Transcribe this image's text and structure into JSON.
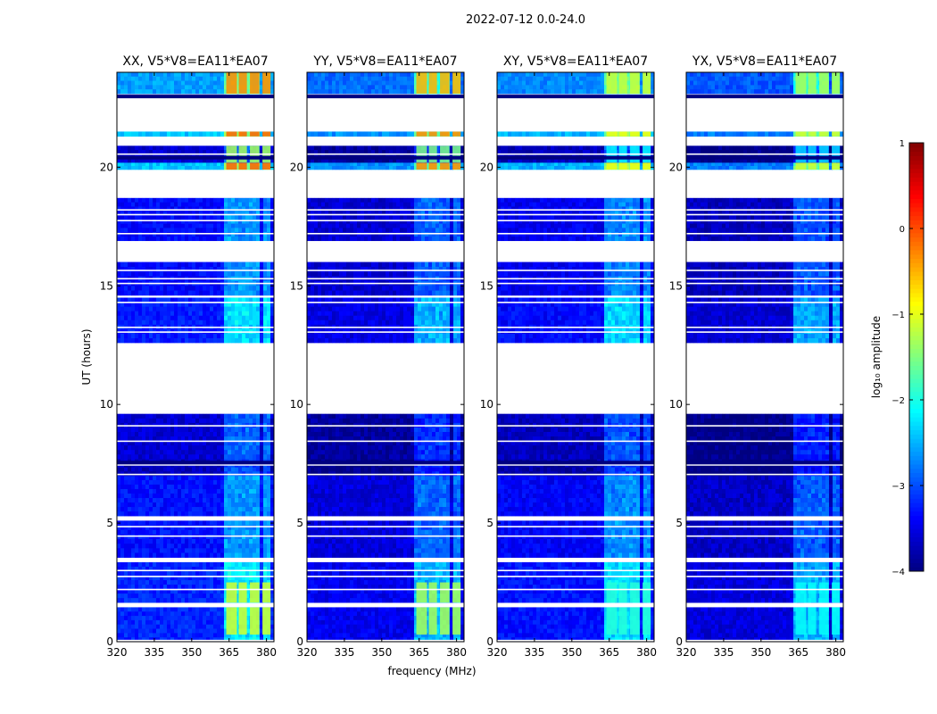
{
  "figure": {
    "suptitle": "2022-07-12 0.0-24.0",
    "xlabel": "frequency (MHz)",
    "ylabel": "UT (hours)"
  },
  "chart_data": {
    "type": "heatmap",
    "description_units": {
      "x": "MHz",
      "y": "UT hours",
      "z": "log10 amplitude"
    },
    "xlim": [
      320,
      383
    ],
    "ylim": [
      0,
      24
    ],
    "xticks": [
      320,
      335,
      350,
      365,
      380
    ],
    "xtick_labels": [
      "320",
      "335",
      "350",
      "365",
      "380"
    ],
    "yticks": [
      0,
      5,
      10,
      15,
      20
    ],
    "ytick_labels": [
      "0",
      "5",
      "10",
      "15",
      "20"
    ],
    "panels": [
      {
        "title": "XX, V5*V8=EA11*EA07",
        "pol": "XX",
        "level": 0.0,
        "edge_level": 1.1,
        "cross": false
      },
      {
        "title": "YY, V5*V8=EA11*EA07",
        "pol": "YY",
        "level": -0.25,
        "edge_level": 0.9,
        "cross": false
      },
      {
        "title": "XY, V5*V8=EA11*EA07",
        "pol": "XY",
        "level": -0.05,
        "edge_level": 0.25,
        "cross": true
      },
      {
        "title": "YX, V5*V8=EA11*EA07",
        "pol": "YX",
        "level": -0.3,
        "edge_level": 0.1,
        "cross": true
      }
    ],
    "rfi_channels_mhz": [
      [
        363.5,
        368.5
      ],
      [
        368.5,
        372.5
      ],
      [
        373.0,
        377.5
      ],
      [
        378.0,
        382.0
      ]
    ],
    "data_blocks_hours": [
      [
        0.0,
        1.45,
        -3.2
      ],
      [
        1.65,
        3.35,
        -3.2
      ],
      [
        3.55,
        5.1,
        -3.3
      ],
      [
        5.3,
        7.0,
        -3.3
      ],
      [
        7.0,
        7.7,
        -3.7
      ],
      [
        7.7,
        9.6,
        -3.6
      ],
      [
        12.6,
        14.5,
        -3.25
      ],
      [
        14.6,
        16.0,
        -3.35
      ],
      [
        16.9,
        18.7,
        -3.35
      ],
      [
        19.9,
        20.2,
        -2.4
      ],
      [
        20.2,
        20.9,
        -3.6
      ],
      [
        21.3,
        21.5,
        -2.4
      ],
      [
        22.95,
        23.1,
        -4.0
      ],
      [
        23.1,
        24.0,
        -2.6
      ]
    ],
    "flag_lines_hours": [
      0.05,
      2.2,
      2.75,
      3.0,
      4.45,
      4.85,
      7.05,
      7.45,
      8.45,
      9.1,
      13.05,
      13.25,
      14.3,
      15.1,
      15.3,
      15.65,
      17.2,
      17.75,
      18.0,
      18.2,
      20.55,
      23.05
    ],
    "colorbar": {
      "label": "log₁₀ amplitude",
      "range": [
        -4,
        1
      ],
      "ticks": [
        1,
        0,
        -1,
        -2,
        -3,
        -4
      ],
      "tick_labels": [
        "1",
        "0",
        "−1",
        "−2",
        "−3",
        "−4"
      ],
      "colormap": "jet"
    }
  }
}
